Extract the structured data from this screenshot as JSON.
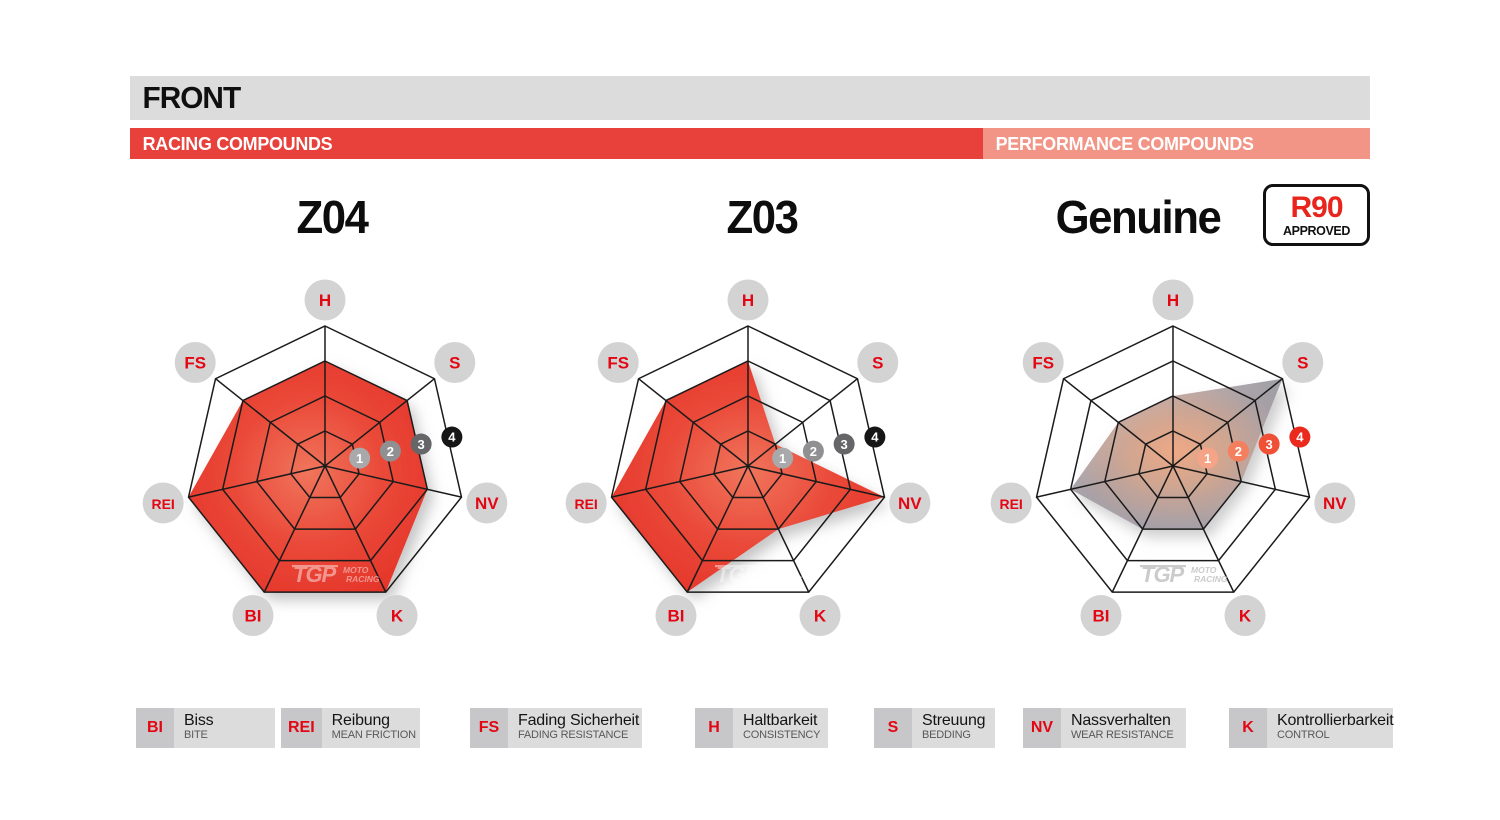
{
  "header": {
    "title": "FRONT"
  },
  "bars": {
    "racing": "RACING COMPOUNDS",
    "performance": "PERFORMANCE COMPOUNDS"
  },
  "axes": {
    "order": [
      "H",
      "S",
      "NV",
      "K",
      "BI",
      "REI",
      "FS"
    ]
  },
  "scale": {
    "markers": [
      "1",
      "2",
      "3",
      "4"
    ]
  },
  "watermark": {
    "tgp": "TGP",
    "moto": "MOTO",
    "racing": "RACING"
  },
  "colors": {
    "accent_red": "#e8413b",
    "performance_salmon": "#f29486",
    "header_gray": "#dcdcdc",
    "label_circle": "#d3d3d4",
    "label_text": "#e30613",
    "grid": "#1b1b1b",
    "legend_abbr_bg": "#c7c7c9",
    "legend_text_bg": "#dcdcdd",
    "legend_en_text": "#58585a",
    "badge_red": "#e8251d"
  },
  "charts": [
    {
      "id": "z04",
      "title": "Z04",
      "section": "racing",
      "values": {
        "H": 3,
        "S": 3,
        "NV": 3,
        "K": 4,
        "BI": 4,
        "REI": 4,
        "FS": 3
      },
      "fill_stops": [
        [
          "0%",
          "#f0755c"
        ],
        [
          "45%",
          "#ea4838"
        ],
        [
          "100%",
          "#e22d23"
        ]
      ],
      "fill_opacity": 1,
      "marker_colors": [
        "#a9a9ab",
        "#909093",
        "#666669",
        "#161616"
      ],
      "watermark_color": "#ffffff",
      "watermark_opacity": 0.45
    },
    {
      "id": "z03",
      "title": "Z03",
      "section": "racing",
      "values": {
        "H": 3,
        "S": 1,
        "NV": 4,
        "K": 2,
        "BI": 4,
        "REI": 4,
        "FS": 3
      },
      "fill_stops": [
        [
          "0%",
          "#f0755c"
        ],
        [
          "45%",
          "#ea4838"
        ],
        [
          "100%",
          "#e22d23"
        ]
      ],
      "fill_opacity": 1,
      "marker_colors": [
        "#a9a9ab",
        "#909093",
        "#666669",
        "#161616"
      ],
      "watermark_color": "#ffffff",
      "watermark_opacity": 0.45
    },
    {
      "id": "genuine",
      "title": "Genuine",
      "section": "performance",
      "badge": {
        "top": "R90",
        "bottom": "APPROVED"
      },
      "values": {
        "H": 2,
        "S": 4,
        "NV": 2,
        "K": 2,
        "BI": 2,
        "REI": 3,
        "FS": 2
      },
      "fill_stops": [
        [
          "0%",
          "#f2a47d"
        ],
        [
          "35%",
          "#cda08b"
        ],
        [
          "70%",
          "#a29aa1"
        ],
        [
          "100%",
          "#8e929a"
        ]
      ],
      "fill_opacity": 0.88,
      "marker_colors": [
        "#f5a488",
        "#f47f5e",
        "#ef5036",
        "#e92a1c"
      ],
      "watermark_color": "#c2c2c4",
      "watermark_opacity": 0.85
    }
  ],
  "legend": {
    "items": [
      {
        "abbr": "BI",
        "de": "Biss",
        "en": "BITE"
      },
      {
        "abbr": "REI",
        "de": "Reibung",
        "en": "MEAN FRICTION"
      },
      {
        "abbr": "FS",
        "de": "Fading Sicherheit",
        "en": "FADING RESISTANCE"
      },
      {
        "abbr": "H",
        "de": "Haltbarkeit",
        "en": "CONSISTENCY"
      },
      {
        "abbr": "S",
        "de": "Streuung",
        "en": "BEDDING"
      },
      {
        "abbr": "NV",
        "de": "Nassverhalten",
        "en": "WEAR RESISTANCE"
      },
      {
        "abbr": "K",
        "de": "Kontrollierbarkeit",
        "en": "CONTROL"
      }
    ]
  },
  "chart_data": [
    {
      "type": "radar",
      "title": "Z04",
      "categories": [
        "H",
        "S",
        "NV",
        "K",
        "BI",
        "REI",
        "FS"
      ],
      "values": [
        3,
        3,
        3,
        4,
        4,
        4,
        3
      ],
      "rings": 4,
      "range": [
        0,
        4
      ],
      "scale_labels": [
        "1",
        "2",
        "3",
        "4"
      ]
    },
    {
      "type": "radar",
      "title": "Z03",
      "categories": [
        "H",
        "S",
        "NV",
        "K",
        "BI",
        "REI",
        "FS"
      ],
      "values": [
        3,
        1,
        4,
        2,
        4,
        4,
        3
      ],
      "rings": 4,
      "range": [
        0,
        4
      ],
      "scale_labels": [
        "1",
        "2",
        "3",
        "4"
      ]
    },
    {
      "type": "radar",
      "title": "Genuine",
      "categories": [
        "H",
        "S",
        "NV",
        "K",
        "BI",
        "REI",
        "FS"
      ],
      "values": [
        2,
        4,
        2,
        2,
        2,
        3,
        2
      ],
      "rings": 4,
      "range": [
        0,
        4
      ],
      "scale_labels": [
        "1",
        "2",
        "3",
        "4"
      ]
    }
  ]
}
